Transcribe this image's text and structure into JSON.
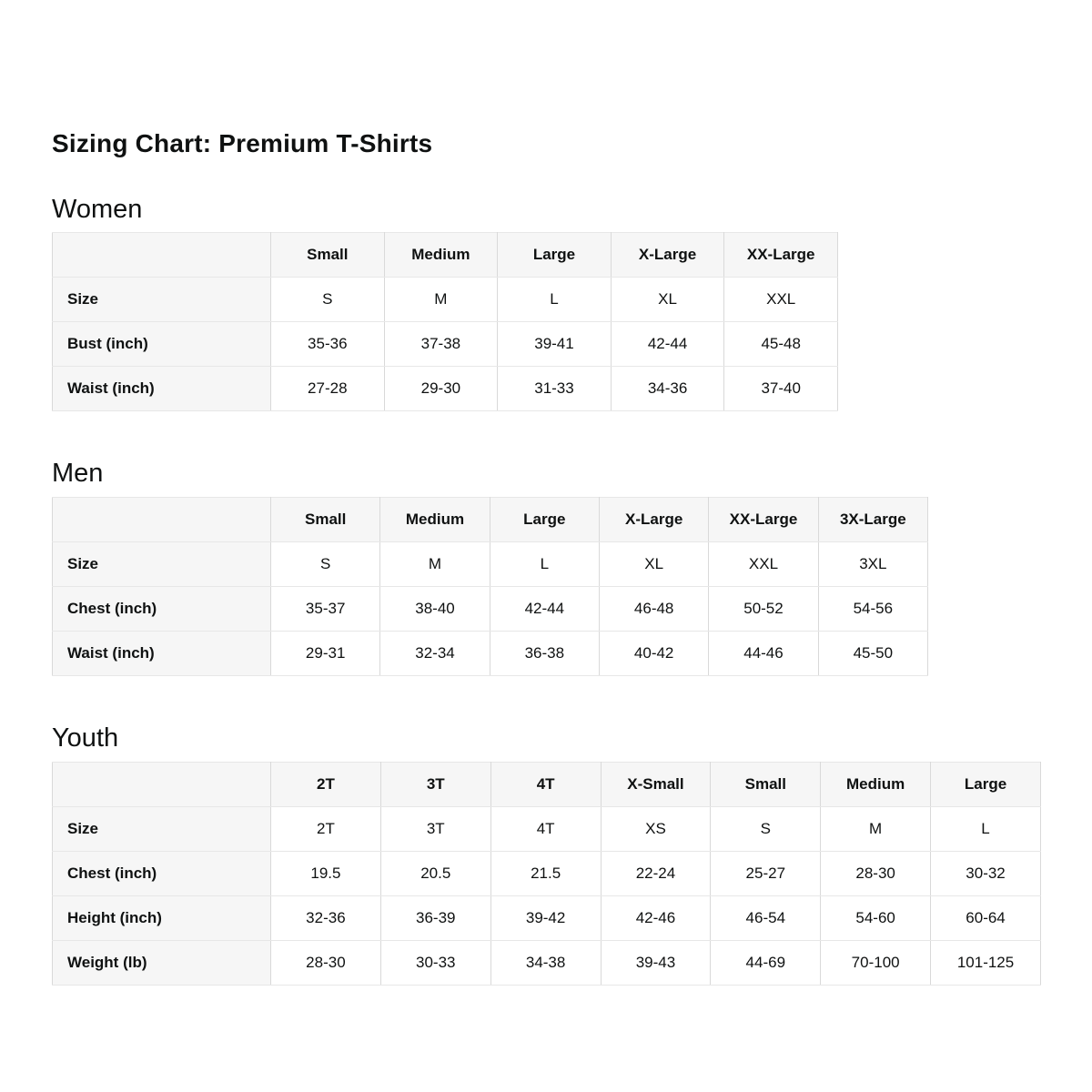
{
  "page": {
    "title": "Sizing Chart: Premium T-Shirts"
  },
  "colors": {
    "page_bg": "#ffffff",
    "text": "#0f1111",
    "header_cell_bg": "#f6f6f6",
    "border_vertical": "#d9d9d9",
    "border_horizontal": "#e7e7e7"
  },
  "tables": [
    {
      "section": "Women",
      "columns": [
        "",
        "Small",
        "Medium",
        "Large",
        "X-Large",
        "XX-Large"
      ],
      "rows": [
        {
          "label": "Size",
          "values": [
            "S",
            "M",
            "L",
            "XL",
            "XXL"
          ]
        },
        {
          "label": "Bust (inch)",
          "values": [
            "35-36",
            "37-38",
            "39-41",
            "42-44",
            "45-48"
          ]
        },
        {
          "label": "Waist (inch)",
          "values": [
            "27-28",
            "29-30",
            "31-33",
            "34-36",
            "37-40"
          ]
        }
      ]
    },
    {
      "section": "Men",
      "columns": [
        "",
        "Small",
        "Medium",
        "Large",
        "X-Large",
        "XX-Large",
        "3X-Large"
      ],
      "rows": [
        {
          "label": "Size",
          "values": [
            "S",
            "M",
            "L",
            "XL",
            "XXL",
            "3XL"
          ]
        },
        {
          "label": "Chest (inch)",
          "values": [
            "35-37",
            "38-40",
            "42-44",
            "46-48",
            "50-52",
            "54-56"
          ]
        },
        {
          "label": "Waist (inch)",
          "values": [
            "29-31",
            "32-34",
            "36-38",
            "40-42",
            "44-46",
            "45-50"
          ]
        }
      ]
    },
    {
      "section": "Youth",
      "columns": [
        "",
        "2T",
        "3T",
        "4T",
        "X-Small",
        "Small",
        "Medium",
        "Large"
      ],
      "rows": [
        {
          "label": "Size",
          "values": [
            "2T",
            "3T",
            "4T",
            "XS",
            "S",
            "M",
            "L"
          ]
        },
        {
          "label": "Chest (inch)",
          "values": [
            "19.5",
            "20.5",
            "21.5",
            "22-24",
            "25-27",
            "28-30",
            "30-32"
          ]
        },
        {
          "label": "Height (inch)",
          "values": [
            "32-36",
            "36-39",
            "39-42",
            "42-46",
            "46-54",
            "54-60",
            "60-64"
          ]
        },
        {
          "label": "Weight (lb)",
          "values": [
            "28-30",
            "30-33",
            "34-38",
            "39-43",
            "44-69",
            "70-100",
            "101-125"
          ]
        }
      ]
    }
  ]
}
